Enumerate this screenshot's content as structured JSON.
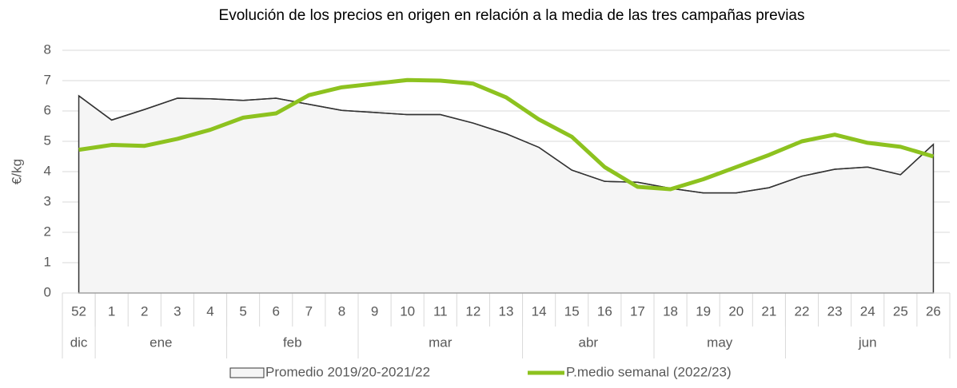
{
  "chart_data": {
    "type": "line",
    "title": "Evolución de los precios en origen en relación a la media de las tres campañas previas",
    "y_label": "€/kg",
    "categories": [
      "52",
      "1",
      "2",
      "3",
      "4",
      "5",
      "6",
      "7",
      "8",
      "9",
      "10",
      "11",
      "12",
      "13",
      "14",
      "15",
      "16",
      "17",
      "18",
      "19",
      "20",
      "21",
      "22",
      "23",
      "24",
      "25",
      "26"
    ],
    "groups": [
      {
        "label": "dic",
        "span": 1
      },
      {
        "label": "ene",
        "span": 4
      },
      {
        "label": "feb",
        "span": 4
      },
      {
        "label": "mar",
        "span": 5
      },
      {
        "label": "abr",
        "span": 4
      },
      {
        "label": "may",
        "span": 4
      },
      {
        "label": "jun",
        "span": 5
      }
    ],
    "series": [
      {
        "name": "Promedio 2019/20-2021/22",
        "style": "area",
        "color": "#333333",
        "fill": "#f5f5f5",
        "values": [
          6.5,
          5.7,
          6.05,
          6.42,
          6.4,
          6.35,
          6.42,
          6.22,
          6.02,
          5.95,
          5.88,
          5.88,
          5.6,
          5.25,
          4.8,
          4.05,
          3.68,
          3.65,
          3.45,
          3.3,
          3.3,
          3.47,
          3.85,
          4.08,
          4.15,
          3.9,
          4.9
        ]
      },
      {
        "name": "P.medio semanal (2022/23)",
        "style": "line",
        "color": "#8dc21f",
        "values": [
          4.72,
          4.88,
          4.85,
          5.08,
          5.38,
          5.78,
          5.92,
          6.52,
          6.78,
          6.9,
          7.02,
          7.0,
          6.9,
          6.45,
          5.72,
          5.15,
          4.15,
          3.5,
          3.42,
          3.75,
          4.15,
          4.55,
          5.0,
          5.22,
          4.95,
          4.82,
          4.5
        ]
      }
    ],
    "ylim": [
      0,
      8
    ],
    "yticks": [
      0,
      1,
      2,
      3,
      4,
      5,
      6,
      7,
      8
    ],
    "grid": true,
    "legend": "bottom"
  }
}
